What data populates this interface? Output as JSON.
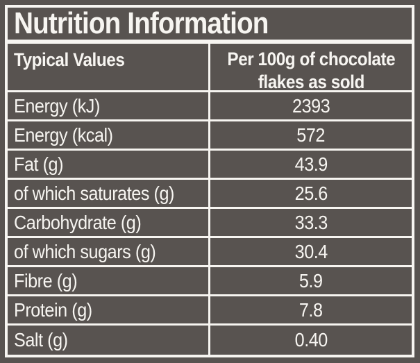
{
  "label": {
    "title": "Nutrition Information",
    "colors": {
      "background": "#585350",
      "text": "#f7f5f1"
    }
  },
  "table": {
    "header": {
      "col1": "Typical Values",
      "col2_line1": "Per 100g of chocolate",
      "col2_line2": "flakes as sold"
    },
    "rows": [
      {
        "label": "Energy (kJ)",
        "value": "2393"
      },
      {
        "label": "Energy (kcal)",
        "value": "572"
      },
      {
        "label": "Fat (g)",
        "value": "43.9"
      },
      {
        "label": "of which saturates (g)",
        "value": "25.6"
      },
      {
        "label": "Carbohydrate (g)",
        "value": "33.3"
      },
      {
        "label": "of which sugars (g)",
        "value": "30.4"
      },
      {
        "label": "Fibre (g)",
        "value": "5.9"
      },
      {
        "label": "Protein (g)",
        "value": "7.8"
      },
      {
        "label": "Salt (g)",
        "value": "0.40"
      }
    ]
  }
}
